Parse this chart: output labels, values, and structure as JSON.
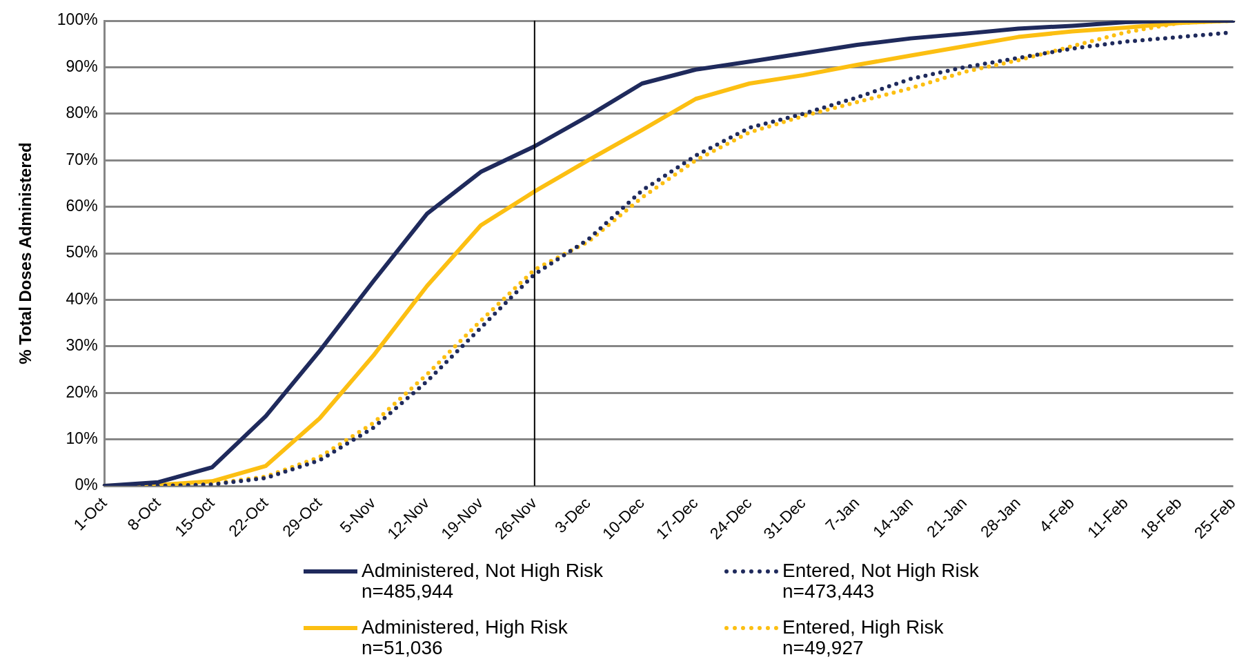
{
  "chart_data": {
    "type": "line",
    "ylabel": "% Total Doses Administered",
    "categories": [
      "1-Oct",
      "8-Oct",
      "15-Oct",
      "22-Oct",
      "29-Oct",
      "5-Nov",
      "12-Nov",
      "19-Nov",
      "26-Nov",
      "3-Dec",
      "10-Dec",
      "17-Dec",
      "24-Dec",
      "31-Dec",
      "7-Jan",
      "14-Jan",
      "21-Jan",
      "28-Jan",
      "4-Feb",
      "11-Feb",
      "18-Feb",
      "25-Feb"
    ],
    "series": [
      {
        "name": "Administered, Not High Risk n=485,944",
        "color": "#1f2a5c",
        "line_style": "solid",
        "values": [
          0,
          0.8,
          4,
          15,
          29,
          44,
          58.5,
          67.5,
          73,
          79.5,
          86.5,
          89.5,
          91.2,
          93,
          94.8,
          96.2,
          97.2,
          98.3,
          98.9,
          99.7,
          100,
          100
        ]
      },
      {
        "name": "Entered, Not High Risk n=473,443",
        "color": "#1f2a5c",
        "line_style": "dotted",
        "values": [
          0,
          0,
          0.3,
          1.7,
          5.5,
          12.5,
          22.5,
          34,
          45.5,
          53,
          63.5,
          71,
          77,
          80,
          83.5,
          87.5,
          90,
          92,
          94,
          95.5,
          96.5,
          97.5
        ]
      },
      {
        "name": "Administered, High Risk n=51,036",
        "color": "#fcbf12",
        "line_style": "solid",
        "values": [
          0,
          0.2,
          1,
          4.3,
          14.5,
          28,
          43,
          56,
          63.3,
          70,
          76.5,
          83.2,
          86.5,
          88.3,
          90.5,
          92.5,
          94.5,
          96.5,
          97.7,
          98.5,
          99.5,
          100
        ]
      },
      {
        "name": "Entered, High Risk n=49,927",
        "color": "#fcbf12",
        "line_style": "dotted",
        "values": [
          0,
          0,
          0.5,
          2,
          6.2,
          13.5,
          24,
          35.5,
          46.5,
          52.5,
          62,
          70,
          76,
          79.5,
          82.5,
          85.5,
          89,
          91.5,
          94.5,
          97.5,
          99.5,
          100
        ]
      }
    ],
    "ylim": [
      0,
      100
    ],
    "yticks": [
      {
        "value": 0,
        "label": "0%"
      },
      {
        "value": 10,
        "label": "10%"
      },
      {
        "value": 20,
        "label": "20%"
      },
      {
        "value": 30,
        "label": "30%"
      },
      {
        "value": 40,
        "label": "40%"
      },
      {
        "value": 50,
        "label": "50%"
      },
      {
        "value": 60,
        "label": "60%"
      },
      {
        "value": 70,
        "label": "70%"
      },
      {
        "value": 80,
        "label": "80%"
      },
      {
        "value": 90,
        "label": "90%"
      },
      {
        "value": 100,
        "label": "100%"
      }
    ],
    "ref_lines": [
      {
        "axis": "x",
        "value": "26-Nov",
        "color": "#000000"
      }
    ],
    "grid": "y",
    "legend": "bottom",
    "marker": "none"
  }
}
